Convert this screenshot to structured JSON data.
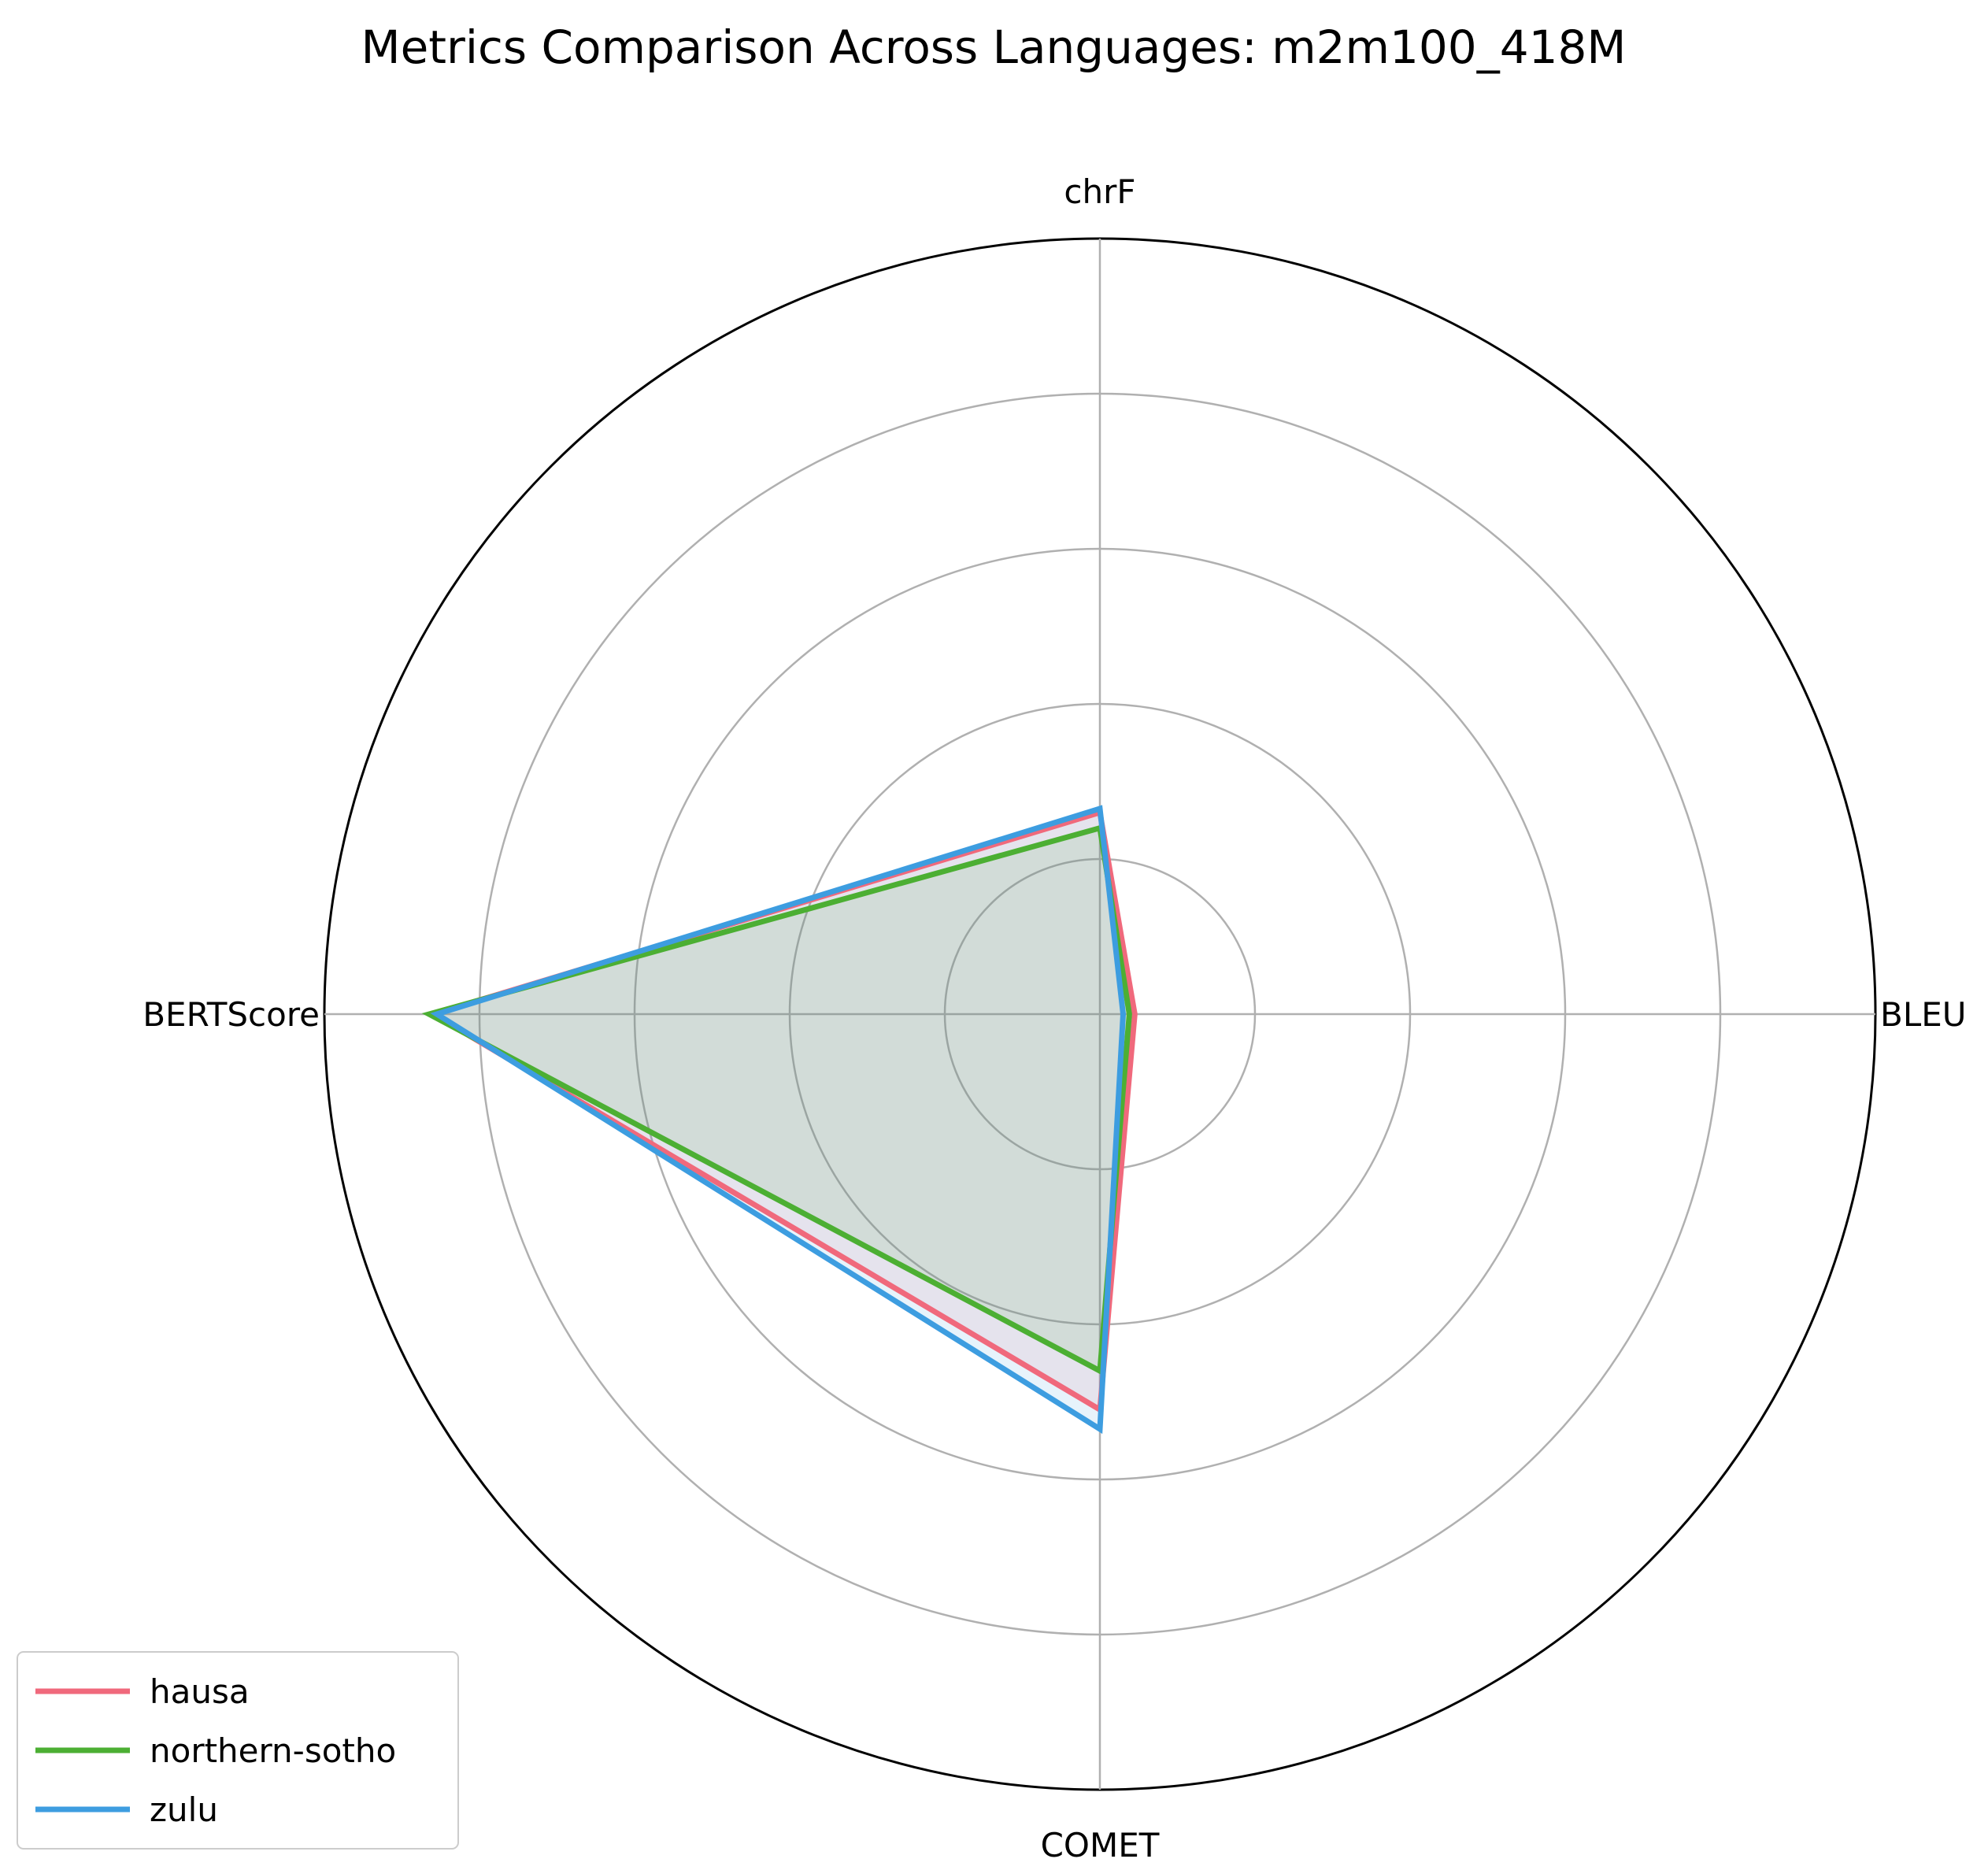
{
  "chart_data": {
    "type": "radar",
    "title": "Metrics Comparison Across Languages: m2m100_418M",
    "axes": [
      "BLEU",
      "chrF",
      "BERTScore",
      "COMET"
    ],
    "rlim": [
      0,
      1
    ],
    "rgrid": [
      0.2,
      0.4,
      0.6,
      0.8,
      1.0
    ],
    "grid": true,
    "legend_position": "lower-left",
    "series": [
      {
        "name": "hausa",
        "color": "#f0697c",
        "values": [
          0.045,
          0.26,
          0.86,
          0.51
        ]
      },
      {
        "name": "northern-sotho",
        "color": "#4caf33",
        "values": [
          0.038,
          0.24,
          0.865,
          0.46
        ]
      },
      {
        "name": "zulu",
        "color": "#3d9de0",
        "values": [
          0.03,
          0.265,
          0.855,
          0.535
        ]
      }
    ]
  }
}
